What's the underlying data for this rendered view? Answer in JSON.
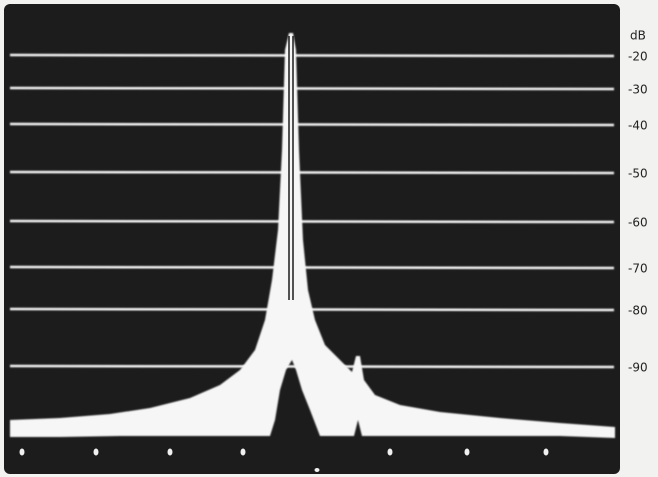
{
  "scale": {
    "unit": "dB",
    "labels": [
      "-20",
      "-30",
      "-40",
      "-50",
      "-60",
      "-70",
      "-80",
      "-90"
    ]
  }
}
